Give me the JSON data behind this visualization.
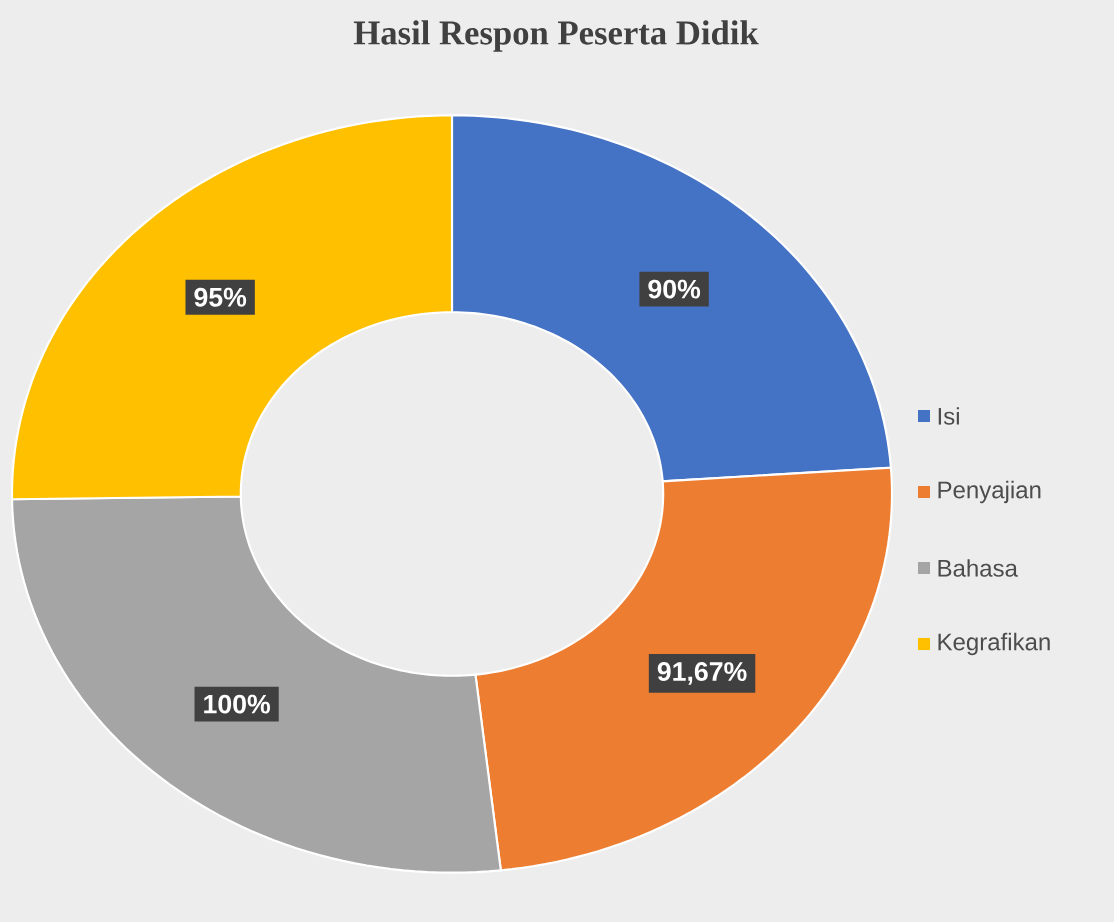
{
  "chart_data": {
    "type": "donut",
    "title": "Hasil Respon Peserta Didik",
    "categories": [
      "Isi",
      "Penyajian",
      "Bahasa",
      "Kegrafikan"
    ],
    "values": [
      90,
      91.67,
      100,
      95
    ],
    "colors": [
      "#4472c4",
      "#ed7d31",
      "#a5a5a5",
      "#ffc000"
    ],
    "value_labels": [
      "90%",
      "91,67%",
      "100%",
      "95%"
    ],
    "legend": "right"
  }
}
